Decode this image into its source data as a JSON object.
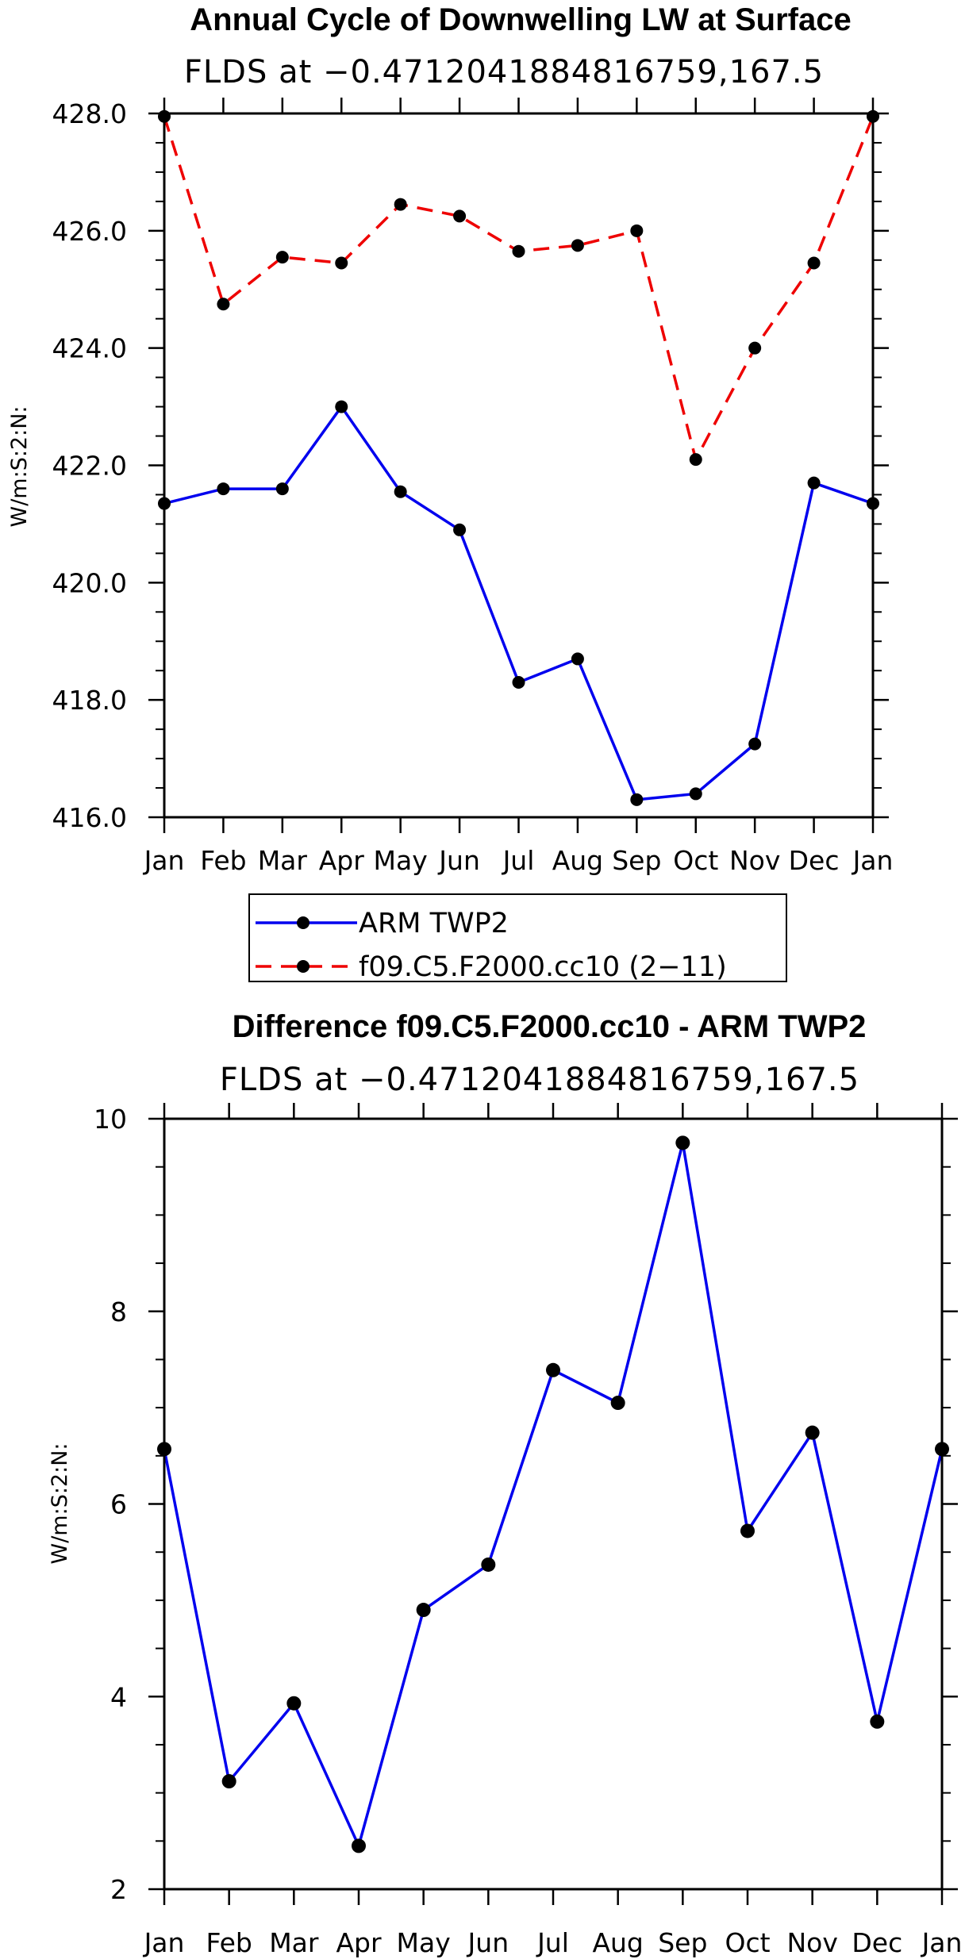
{
  "chart_data": [
    {
      "type": "line",
      "title": "Annual Cycle of Downwelling LW at Surface",
      "subtitle": "FLDS at −0.4712041884816759,167.5",
      "ylabel": "W/m:S:2:N:",
      "xlabel": "",
      "categories": [
        "Jan",
        "Feb",
        "Mar",
        "Apr",
        "May",
        "Jun",
        "Jul",
        "Aug",
        "Sep",
        "Oct",
        "Nov",
        "Dec",
        "Jan"
      ],
      "yticks": [
        "416.0",
        "418.0",
        "420.0",
        "422.0",
        "424.0",
        "426.0",
        "428.0"
      ],
      "ylim": [
        416,
        428
      ],
      "series": [
        {
          "name": "ARM TWP2",
          "color": "#0000ee",
          "dash": "solid",
          "values": [
            421.35,
            421.6,
            421.6,
            423.0,
            421.55,
            420.9,
            418.3,
            418.7,
            416.3,
            416.4,
            417.25,
            421.7,
            421.35
          ]
        },
        {
          "name": "f09.C5.F2000.cc10 (2−11)",
          "color": "#ee0000",
          "dash": "dashed",
          "values": [
            427.95,
            424.75,
            425.55,
            425.45,
            426.45,
            426.25,
            425.65,
            425.75,
            426.0,
            422.1,
            424.0,
            425.45,
            427.95
          ]
        }
      ],
      "legend": {
        "placement": "bottom",
        "entries": [
          "ARM TWP2",
          "f09.C5.F2000.cc10 (2−11)"
        ]
      }
    },
    {
      "type": "line",
      "title": "Difference f09.C5.F2000.cc10 - ARM TWP2",
      "subtitle": "FLDS at −0.4712041884816759,167.5",
      "ylabel": "W/m:S:2:N:",
      "xlabel": "",
      "categories": [
        "Jan",
        "Feb",
        "Mar",
        "Apr",
        "May",
        "Jun",
        "Jul",
        "Aug",
        "Sep",
        "Oct",
        "Nov",
        "Dec",
        "Jan"
      ],
      "yticks": [
        "2",
        "4",
        "6",
        "8",
        "10"
      ],
      "ylim": [
        2,
        10
      ],
      "series": [
        {
          "name": "Difference",
          "color": "#0000ee",
          "dash": "solid",
          "values": [
            6.57,
            3.12,
            3.93,
            2.45,
            4.9,
            5.37,
            7.39,
            7.05,
            9.75,
            5.72,
            6.74,
            3.74,
            6.57
          ]
        }
      ]
    }
  ]
}
